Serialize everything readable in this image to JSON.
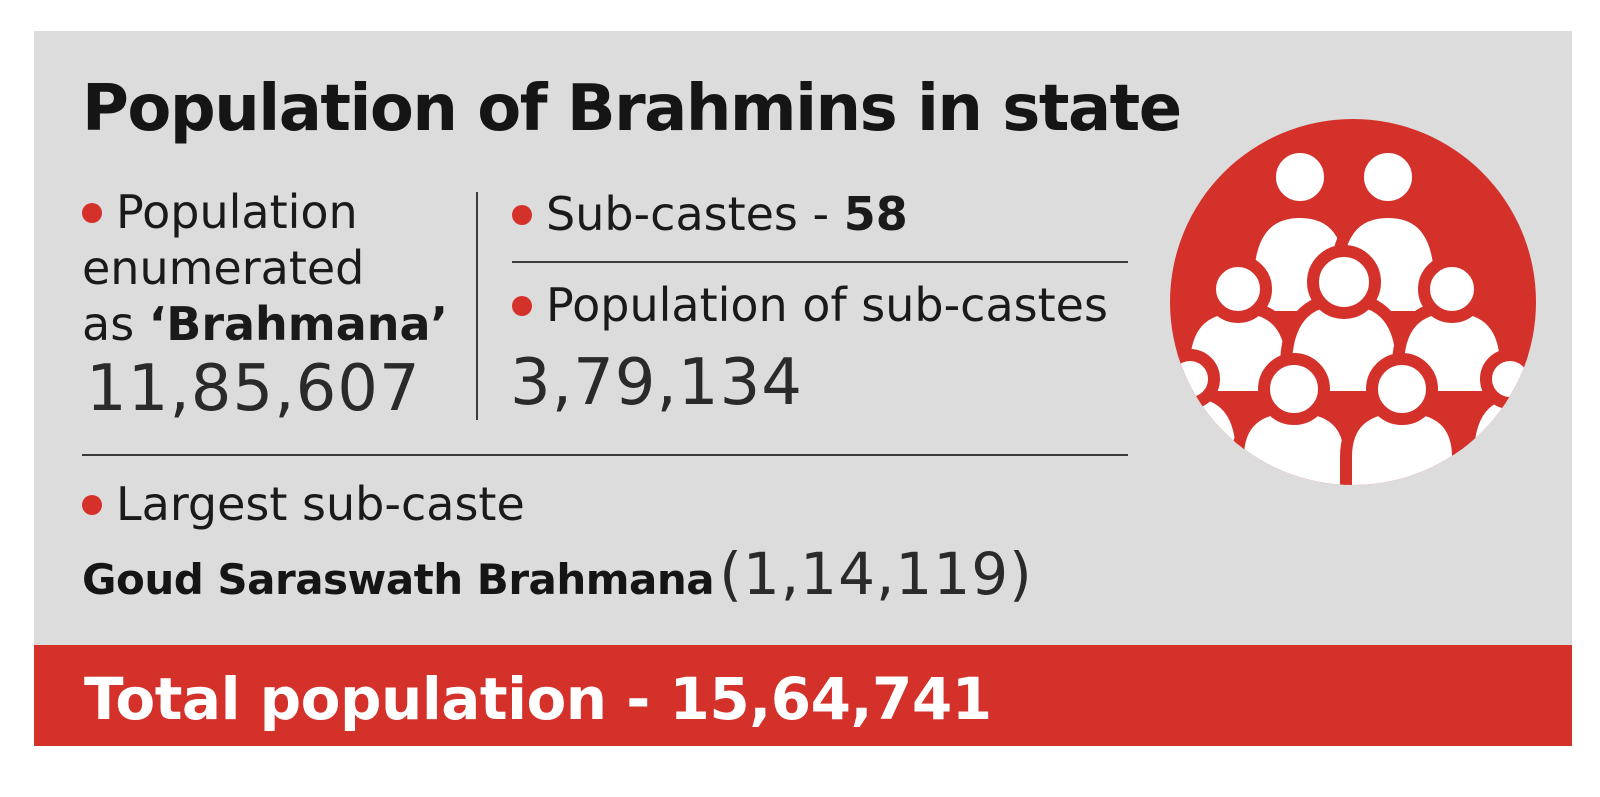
{
  "title": "Population of Brahmins in state",
  "enumerated": {
    "label_line1": "Population",
    "label_line2": "enumerated",
    "label_line3_prefix": "as ",
    "label_line3_bold": "‘Brahmana’",
    "value": "11,85,607"
  },
  "subcastes": {
    "label": "Sub-castes - ",
    "value": "58"
  },
  "subcaste_population": {
    "label": "Population of sub-castes",
    "value": "3,79,134"
  },
  "largest_subcaste": {
    "label": "Largest sub-caste",
    "name": "Goud Saraswath Brahmana",
    "value": "(1,14,119)"
  },
  "total": "Total population - 15,64,741",
  "colors": {
    "accent": "#d4312a",
    "panel": "#dcdcdc",
    "text": "#1a1a1a"
  },
  "icon": "crowd-people-icon"
}
